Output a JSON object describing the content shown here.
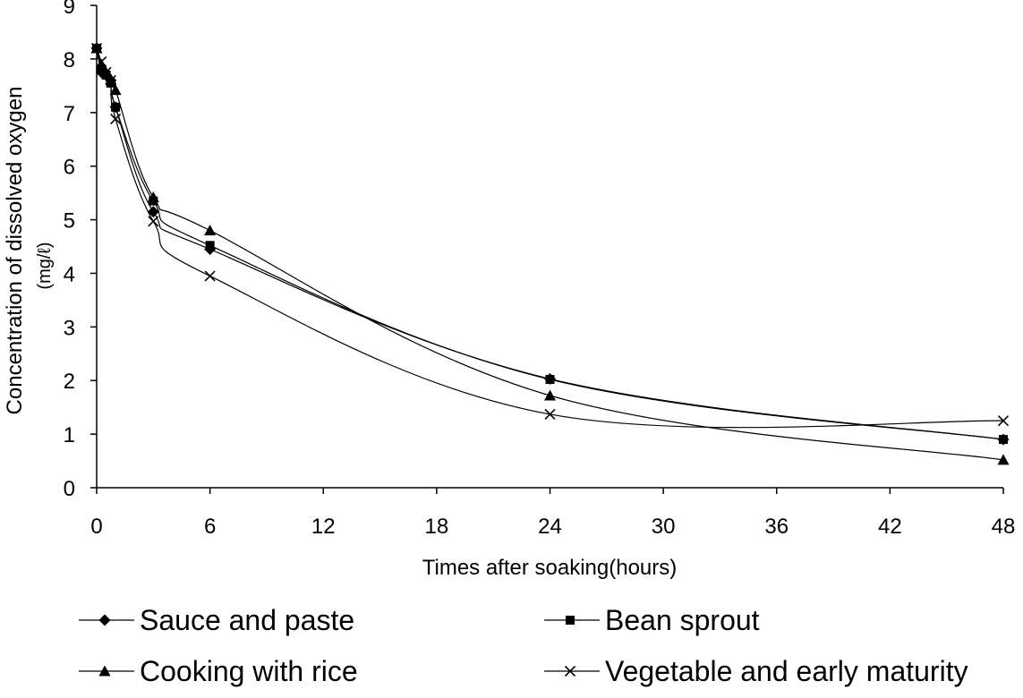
{
  "chart_data": {
    "type": "line",
    "xlabel": "Times after soaking(hours)",
    "ylabel": "Concentration of dissolved oxygen",
    "ylabel_unit": "(mg/ℓ)",
    "xlim": [
      0,
      48
    ],
    "ylim": [
      0,
      9
    ],
    "xticks": [
      0,
      6,
      12,
      18,
      24,
      30,
      36,
      42,
      48
    ],
    "yticks": [
      0,
      1,
      2,
      3,
      4,
      5,
      6,
      7,
      8,
      9
    ],
    "grid": false,
    "legend_position": "bottom",
    "series": [
      {
        "name": "Sauce and paste",
        "marker": "diamond",
        "x": [
          0,
          0.25,
          0.5,
          0.75,
          1,
          3,
          6,
          24,
          48
        ],
        "y": [
          8.2,
          7.75,
          7.7,
          7.6,
          7.1,
          5.15,
          4.45,
          2.03,
          0.9
        ]
      },
      {
        "name": "Bean sprout",
        "marker": "square",
        "x": [
          0,
          0.25,
          0.5,
          0.75,
          1,
          3,
          6,
          24,
          48
        ],
        "y": [
          8.2,
          7.8,
          7.7,
          7.55,
          7.1,
          5.35,
          4.52,
          2.02,
          0.9
        ]
      },
      {
        "name": "Cooking with rice",
        "marker": "triangle",
        "x": [
          0,
          0.25,
          0.5,
          0.75,
          1,
          3,
          6,
          24,
          48
        ],
        "y": [
          8.2,
          7.9,
          7.75,
          7.62,
          7.42,
          5.42,
          4.8,
          1.72,
          0.52
        ]
      },
      {
        "name": "Vegetable and early maturity",
        "marker": "x",
        "x": [
          0,
          0.25,
          0.5,
          0.75,
          1,
          3,
          6,
          24,
          48
        ],
        "y": [
          8.2,
          7.95,
          7.75,
          7.6,
          6.88,
          4.97,
          3.95,
          1.37,
          1.25
        ]
      }
    ]
  }
}
